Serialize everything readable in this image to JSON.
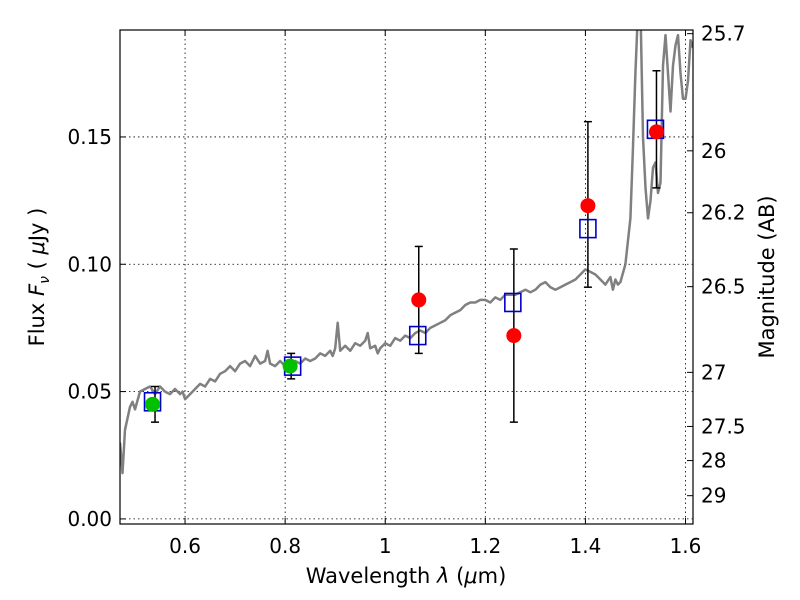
{
  "chart_data": {
    "type": "scatter",
    "title": "",
    "xlabel": "Wavelength",
    "xlabel_symbol": "λ",
    "xlabel_unit_open": "(",
    "xlabel_unit_mu": "μ",
    "xlabel_unit_rest": "m)",
    "ylabel": "Flux",
    "ylabel_symbol": "F",
    "ylabel_subscript": "ν",
    "ylabel_unit_open": "(",
    "ylabel_unit_mu": "μ",
    "ylabel_unit_rest": "Jy )",
    "ylabel_right": "Magnitude (AB)",
    "xlim": [
      0.47,
      1.615
    ],
    "ylim": [
      -0.002,
      0.192
    ],
    "grid": true,
    "x_ticks": [
      {
        "value": 0.6,
        "label": "0.6"
      },
      {
        "value": 0.8,
        "label": "0.8"
      },
      {
        "value": 1.0,
        "label": "1"
      },
      {
        "value": 1.2,
        "label": "1.2"
      },
      {
        "value": 1.4,
        "label": "1.4"
      },
      {
        "value": 1.6,
        "label": "1.6"
      }
    ],
    "y_ticks": [
      {
        "value": 0.0,
        "label": "0.00"
      },
      {
        "value": 0.05,
        "label": "0.05"
      },
      {
        "value": 0.1,
        "label": "0.10"
      },
      {
        "value": 0.15,
        "label": "0.15"
      }
    ],
    "right_ticks": [
      {
        "value": 25.7,
        "label": "25.7"
      },
      {
        "value": 26.0,
        "label": "26"
      },
      {
        "value": 26.2,
        "label": "26.2"
      },
      {
        "value": 26.5,
        "label": "26.5"
      },
      {
        "value": 27.0,
        "label": "27"
      },
      {
        "value": 27.5,
        "label": "27.5"
      },
      {
        "value": 28.0,
        "label": "28"
      },
      {
        "value": 29.0,
        "label": "29"
      }
    ],
    "series": [
      {
        "name": "model_spectrum",
        "kind": "line",
        "color": "#808080",
        "points": [
          [
            0.47,
            0.03
          ],
          [
            0.475,
            0.018
          ],
          [
            0.48,
            0.035
          ],
          [
            0.49,
            0.044
          ],
          [
            0.495,
            0.046
          ],
          [
            0.5,
            0.043
          ],
          [
            0.51,
            0.05
          ],
          [
            0.52,
            0.051
          ],
          [
            0.53,
            0.052
          ],
          [
            0.54,
            0.049
          ],
          [
            0.55,
            0.052
          ],
          [
            0.56,
            0.05
          ],
          [
            0.57,
            0.049
          ],
          [
            0.58,
            0.051
          ],
          [
            0.59,
            0.049
          ],
          [
            0.595,
            0.05
          ],
          [
            0.6,
            0.047
          ],
          [
            0.61,
            0.049
          ],
          [
            0.62,
            0.051
          ],
          [
            0.63,
            0.053
          ],
          [
            0.64,
            0.052
          ],
          [
            0.65,
            0.055
          ],
          [
            0.66,
            0.054
          ],
          [
            0.67,
            0.057
          ],
          [
            0.68,
            0.058
          ],
          [
            0.69,
            0.06
          ],
          [
            0.7,
            0.058
          ],
          [
            0.71,
            0.061
          ],
          [
            0.72,
            0.062
          ],
          [
            0.73,
            0.06
          ],
          [
            0.74,
            0.064
          ],
          [
            0.75,
            0.061
          ],
          [
            0.76,
            0.062
          ],
          [
            0.765,
            0.066
          ],
          [
            0.77,
            0.061
          ],
          [
            0.78,
            0.06
          ],
          [
            0.79,
            0.062
          ],
          [
            0.8,
            0.06
          ],
          [
            0.81,
            0.061
          ],
          [
            0.82,
            0.062
          ],
          [
            0.83,
            0.061
          ],
          [
            0.84,
            0.063
          ],
          [
            0.85,
            0.062
          ],
          [
            0.86,
            0.063
          ],
          [
            0.87,
            0.065
          ],
          [
            0.88,
            0.064
          ],
          [
            0.89,
            0.066
          ],
          [
            0.895,
            0.064
          ],
          [
            0.9,
            0.067
          ],
          [
            0.905,
            0.077
          ],
          [
            0.91,
            0.066
          ],
          [
            0.92,
            0.068
          ],
          [
            0.93,
            0.066
          ],
          [
            0.94,
            0.069
          ],
          [
            0.95,
            0.068
          ],
          [
            0.96,
            0.07
          ],
          [
            0.965,
            0.073
          ],
          [
            0.97,
            0.067
          ],
          [
            0.98,
            0.068
          ],
          [
            0.985,
            0.065
          ],
          [
            0.99,
            0.067
          ],
          [
            1.0,
            0.069
          ],
          [
            1.01,
            0.068
          ],
          [
            1.02,
            0.071
          ],
          [
            1.03,
            0.07
          ],
          [
            1.04,
            0.072
          ],
          [
            1.05,
            0.071
          ],
          [
            1.06,
            0.073
          ],
          [
            1.07,
            0.074
          ],
          [
            1.08,
            0.073
          ],
          [
            1.09,
            0.075
          ],
          [
            1.1,
            0.076
          ],
          [
            1.11,
            0.077
          ],
          [
            1.12,
            0.078
          ],
          [
            1.13,
            0.08
          ],
          [
            1.14,
            0.081
          ],
          [
            1.15,
            0.082
          ],
          [
            1.16,
            0.084
          ],
          [
            1.17,
            0.085
          ],
          [
            1.18,
            0.085
          ],
          [
            1.19,
            0.086
          ],
          [
            1.2,
            0.086
          ],
          [
            1.21,
            0.085
          ],
          [
            1.22,
            0.087
          ],
          [
            1.23,
            0.086
          ],
          [
            1.24,
            0.088
          ],
          [
            1.25,
            0.088
          ],
          [
            1.26,
            0.088
          ],
          [
            1.27,
            0.089
          ],
          [
            1.28,
            0.09
          ],
          [
            1.29,
            0.089
          ],
          [
            1.3,
            0.09
          ],
          [
            1.31,
            0.092
          ],
          [
            1.32,
            0.093
          ],
          [
            1.33,
            0.091
          ],
          [
            1.34,
            0.09
          ],
          [
            1.35,
            0.091
          ],
          [
            1.36,
            0.092
          ],
          [
            1.37,
            0.093
          ],
          [
            1.38,
            0.094
          ],
          [
            1.39,
            0.096
          ],
          [
            1.4,
            0.098
          ],
          [
            1.41,
            0.097
          ],
          [
            1.42,
            0.096
          ],
          [
            1.43,
            0.094
          ],
          [
            1.44,
            0.092
          ],
          [
            1.45,
            0.095
          ],
          [
            1.455,
            0.09
          ],
          [
            1.46,
            0.094
          ],
          [
            1.465,
            0.092
          ],
          [
            1.47,
            0.093
          ],
          [
            1.48,
            0.1
          ],
          [
            1.49,
            0.118
          ],
          [
            1.495,
            0.145
          ],
          [
            1.5,
            0.175
          ],
          [
            1.505,
            0.2
          ],
          [
            1.51,
            0.2
          ],
          [
            1.515,
            0.15
          ],
          [
            1.52,
            0.13
          ],
          [
            1.525,
            0.118
          ],
          [
            1.53,
            0.125
          ],
          [
            1.535,
            0.138
          ],
          [
            1.54,
            0.14
          ],
          [
            1.545,
            0.128
          ],
          [
            1.55,
            0.132
          ],
          [
            1.555,
            0.178
          ],
          [
            1.56,
            0.19
          ],
          [
            1.565,
            0.175
          ],
          [
            1.57,
            0.16
          ],
          [
            1.575,
            0.178
          ],
          [
            1.58,
            0.186
          ],
          [
            1.585,
            0.19
          ],
          [
            1.59,
            0.175
          ],
          [
            1.595,
            0.165
          ],
          [
            1.6,
            0.165
          ],
          [
            1.605,
            0.172
          ],
          [
            1.61,
            0.188
          ],
          [
            1.615,
            0.185
          ]
        ]
      },
      {
        "name": "model_photometry",
        "kind": "open-square",
        "color": "#0000cc",
        "points": [
          [
            0.535,
            0.046
          ],
          [
            0.815,
            0.06
          ],
          [
            1.065,
            0.072
          ],
          [
            1.255,
            0.085
          ],
          [
            1.405,
            0.114
          ],
          [
            1.54,
            0.153
          ]
        ]
      },
      {
        "name": "optical_detections",
        "kind": "filled-circle",
        "color": "#00c000",
        "points": [
          [
            0.535,
            0.045
          ],
          [
            0.81,
            0.06
          ]
        ]
      },
      {
        "name": "nir_detections",
        "kind": "filled-circle",
        "color": "#ff0000",
        "points": [
          [
            1.067,
            0.086
          ],
          [
            1.257,
            0.072
          ],
          [
            1.405,
            0.123
          ],
          [
            1.542,
            0.152
          ]
        ]
      }
    ],
    "error_bars": [
      {
        "x": 0.54,
        "y_low": 0.038,
        "y_high": 0.052
      },
      {
        "x": 0.812,
        "y_low": 0.055,
        "y_high": 0.065
      },
      {
        "x": 1.067,
        "y_low": 0.065,
        "y_high": 0.107
      },
      {
        "x": 1.257,
        "y_low": 0.038,
        "y_high": 0.106
      },
      {
        "x": 1.405,
        "y_low": 0.091,
        "y_high": 0.156
      },
      {
        "x": 1.542,
        "y_low": 0.13,
        "y_high": 0.176
      }
    ]
  }
}
